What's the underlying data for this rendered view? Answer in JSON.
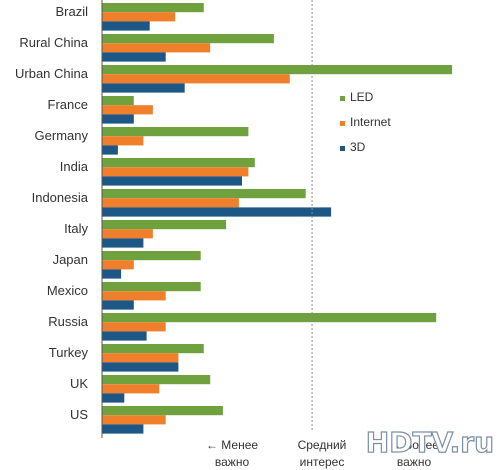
{
  "chart_data": {
    "type": "bar",
    "orientation": "horizontal",
    "categories": [
      "Brazil",
      "Rural China",
      "Urban China",
      "France",
      "Germany",
      "India",
      "Indonesia",
      "Italy",
      "Japan",
      "Mexico",
      "Russia",
      "Turkey",
      "UK",
      "US"
    ],
    "series": [
      {
        "name": "LED",
        "color": "#6fa13e",
        "values": [
          3.2,
          5.4,
          11.0,
          1.0,
          4.6,
          4.8,
          6.4,
          3.9,
          3.1,
          3.1,
          10.5,
          3.2,
          3.4,
          3.8
        ]
      },
      {
        "name": "Internet",
        "color": "#f07f2c",
        "values": [
          2.3,
          3.4,
          5.9,
          1.6,
          1.3,
          4.6,
          4.3,
          1.6,
          1.0,
          2.0,
          2.0,
          2.4,
          1.8,
          2.0
        ]
      },
      {
        "name": "3D",
        "color": "#1c5785",
        "values": [
          1.5,
          2.0,
          2.6,
          1.0,
          0.5,
          4.4,
          7.2,
          1.3,
          0.6,
          1.0,
          1.4,
          2.4,
          0.7,
          1.3
        ]
      }
    ],
    "reference_line": {
      "value": 6.6,
      "style": "dotted"
    },
    "xlim": [
      0,
      11.5
    ],
    "grid": false,
    "legend_position": "right",
    "annotations": [
      {
        "lines": [
          "← Менее",
          "важно"
        ]
      },
      {
        "lines": [
          "Средний",
          "интерес"
        ]
      },
      {
        "lines": [
          "→ Более",
          "важно"
        ]
      }
    ]
  },
  "watermark": "HDTV.ru"
}
